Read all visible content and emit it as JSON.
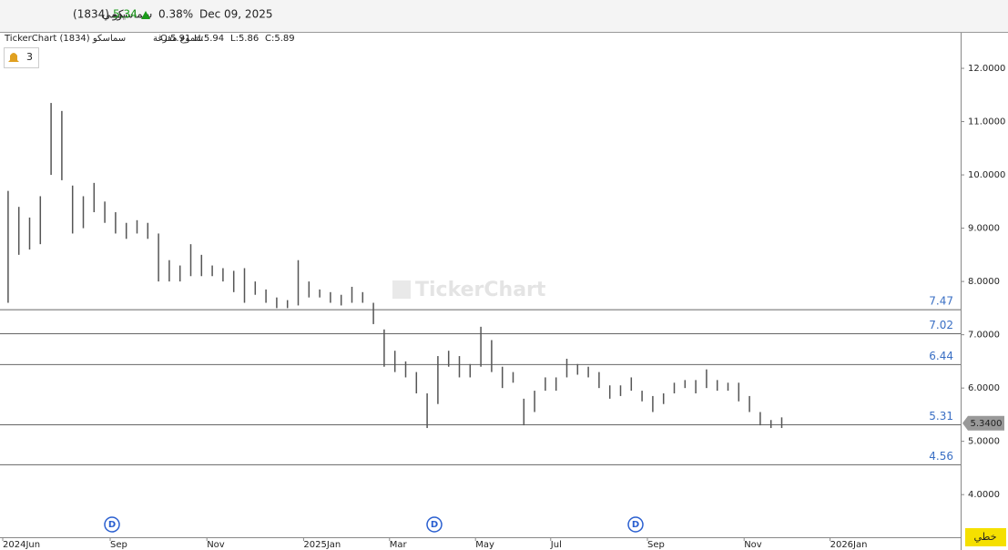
{
  "header": {
    "symbol": "سماسكو (1834)",
    "period": "يومي",
    "price": "5.34",
    "change": "0.38%",
    "date": "Dec 09, 2025"
  },
  "info": {
    "source": "TickerChart سماسكو (1834)",
    "style": "شموع مفرغة",
    "ohlc": [
      "O:5.91",
      "H:5.94",
      "L:5.86",
      "C:5.89"
    ]
  },
  "alerts": "3",
  "watermark": "TickerChart",
  "dividend_markers": [
    "D",
    "D",
    "D"
  ],
  "chart_type_button": "خطي",
  "chart_data": {
    "type": "hilo",
    "color": "#555555",
    "categories": [
      "2024Jun",
      null,
      null,
      null,
      null,
      null,
      null,
      null,
      null,
      null,
      "Sep",
      null,
      null,
      null,
      null,
      null,
      null,
      null,
      null,
      "Nov",
      null,
      null,
      null,
      null,
      null,
      null,
      null,
      null,
      "2025Jan",
      null,
      null,
      null,
      null,
      null,
      null,
      null,
      "Mar",
      null,
      null,
      null,
      null,
      null,
      null,
      null,
      "May",
      null,
      null,
      null,
      null,
      null,
      null,
      "Jul",
      null,
      null,
      null,
      null,
      null,
      null,
      null,
      null,
      "Sep",
      null,
      null,
      null,
      null,
      null,
      null,
      null,
      null,
      "Nov",
      null,
      null,
      null,
      null,
      null,
      null,
      null,
      "2026Jan",
      null
    ],
    "high": [
      9.7,
      9.4,
      9.2,
      9.6,
      11.35,
      11.2,
      9.8,
      9.6,
      9.85,
      9.5,
      9.3,
      9.1,
      9.15,
      9.1,
      8.9,
      8.4,
      8.3,
      8.7,
      8.5,
      8.3,
      8.25,
      8.2,
      8.25,
      8.0,
      7.85,
      7.7,
      7.65,
      8.4,
      8.0,
      7.85,
      7.8,
      7.75,
      7.9,
      7.8,
      7.6,
      7.1,
      6.7,
      6.5,
      6.3,
      5.9,
      6.6,
      6.7,
      6.6,
      6.45,
      7.15,
      6.9,
      6.4,
      6.3,
      5.8,
      5.95,
      6.2,
      6.2,
      6.55,
      6.45,
      6.4,
      6.3,
      6.05,
      6.05,
      6.2,
      5.95,
      5.85,
      5.9,
      6.1,
      6.15,
      6.15,
      6.35,
      6.15,
      6.1,
      6.1,
      5.85,
      5.55,
      5.4,
      5.45,
      null,
      null,
      null,
      null,
      null,
      null
    ],
    "low": [
      7.6,
      8.5,
      8.6,
      8.7,
      10.0,
      9.9,
      8.9,
      9.0,
      9.3,
      9.1,
      8.9,
      8.8,
      8.9,
      8.8,
      8.0,
      8.0,
      8.0,
      8.1,
      8.1,
      8.1,
      8.0,
      7.8,
      7.6,
      7.75,
      7.6,
      7.5,
      7.5,
      7.55,
      7.7,
      7.7,
      7.6,
      7.55,
      7.6,
      7.6,
      7.2,
      6.4,
      6.3,
      6.2,
      5.9,
      5.25,
      5.7,
      6.4,
      6.2,
      6.2,
      6.4,
      6.3,
      6.0,
      6.1,
      5.3,
      5.55,
      5.95,
      5.95,
      6.2,
      6.25,
      6.2,
      6.0,
      5.8,
      5.85,
      5.95,
      5.75,
      5.55,
      5.7,
      5.9,
      6.0,
      5.9,
      6.0,
      5.95,
      5.95,
      5.75,
      5.55,
      5.3,
      5.25,
      5.25,
      null,
      null,
      null,
      null,
      null,
      null
    ],
    "ylim": [
      3.2,
      12.667
    ],
    "yticks": [
      {
        "value": 4,
        "label": "4.0000"
      },
      {
        "value": 5,
        "label": "5.0000"
      },
      {
        "value": 6,
        "label": "6.0000"
      },
      {
        "value": 7,
        "label": "7.0000"
      },
      {
        "value": 8,
        "label": "8.0000"
      },
      {
        "value": 9,
        "label": "9.0000"
      },
      {
        "value": 10,
        "label": "10.0000"
      },
      {
        "value": 11,
        "label": "11.0000"
      },
      {
        "value": 12,
        "label": "12.0000"
      }
    ],
    "levels": [
      7.47,
      7.02,
      6.44,
      5.31,
      4.56
    ],
    "level_color": "#3a6fc4",
    "last_price": {
      "value": 5.34,
      "label": "5.3400"
    }
  }
}
